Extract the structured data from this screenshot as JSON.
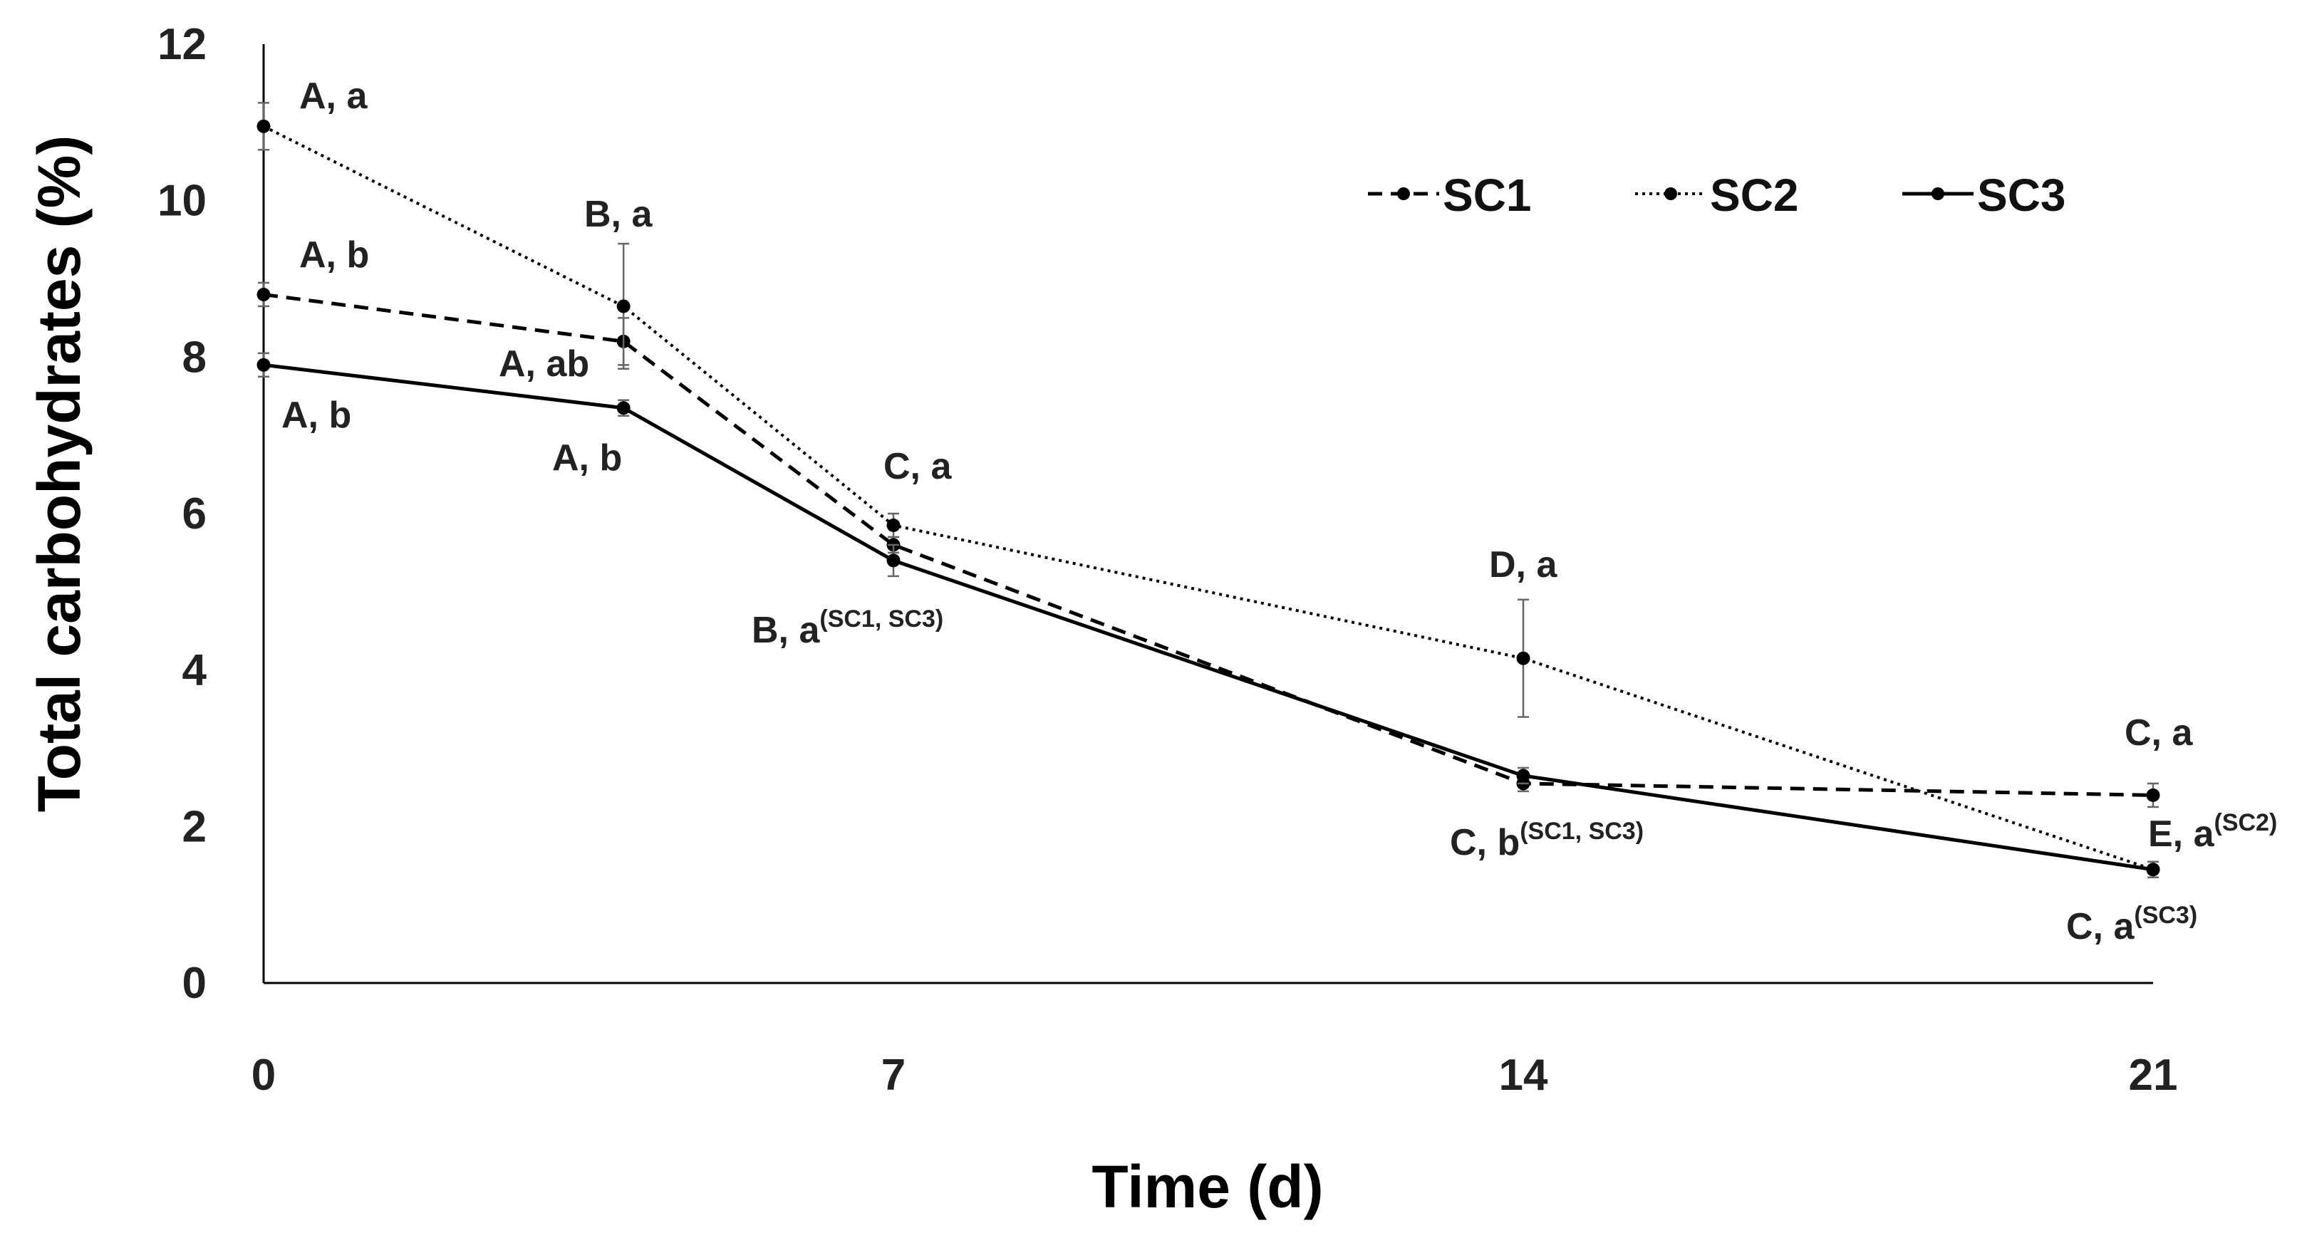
{
  "chart_data": {
    "type": "line",
    "title": "",
    "xlabel": "Time (d)",
    "ylabel": "Total carbohydrates (%)",
    "xlim": [
      0,
      21
    ],
    "ylim": [
      0,
      12
    ],
    "x_ticks": [
      0,
      7,
      14,
      21
    ],
    "y_ticks": [
      0,
      2,
      4,
      6,
      8,
      10,
      12
    ],
    "grid": false,
    "legend_position": "top-right",
    "series": [
      {
        "name": "SC1",
        "style": "dashed",
        "x": [
          0,
          4,
          7,
          14,
          21
        ],
        "values": [
          8.8,
          8.2,
          5.6,
          2.55,
          2.4
        ],
        "errors": [
          0.15,
          0.3,
          0.1,
          0.1,
          0.15
        ]
      },
      {
        "name": "SC2",
        "style": "dotted",
        "x": [
          0,
          4,
          7,
          14,
          21
        ],
        "values": [
          10.95,
          8.65,
          5.85,
          4.15,
          1.45
        ],
        "errors": [
          0.3,
          0.8,
          0.15,
          0.75,
          0.1
        ]
      },
      {
        "name": "SC3",
        "style": "solid",
        "x": [
          0,
          4,
          7,
          14,
          21
        ],
        "values": [
          7.9,
          7.35,
          5.4,
          2.65,
          1.45
        ],
        "errors": [
          0.15,
          0.1,
          0.2,
          0.1,
          0.1
        ]
      }
    ],
    "annotations": [
      {
        "text": "A, a",
        "sup": ""
      },
      {
        "text": "A, b",
        "sup": ""
      },
      {
        "text": "A, b",
        "sup": ""
      },
      {
        "text": "B, a",
        "sup": ""
      },
      {
        "text": "A, ab",
        "sup": ""
      },
      {
        "text": "A, b",
        "sup": ""
      },
      {
        "text": "C, a",
        "sup": ""
      },
      {
        "text": "B, a",
        "sup": "(SC1, SC3)"
      },
      {
        "text": "D, a",
        "sup": ""
      },
      {
        "text": "C, b",
        "sup": "(SC1, SC3)"
      },
      {
        "text": "C, a",
        "sup": ""
      },
      {
        "text": "E, a",
        "sup": "(SC2)"
      },
      {
        "text": "C, a",
        "sup": "(SC3)"
      }
    ]
  }
}
